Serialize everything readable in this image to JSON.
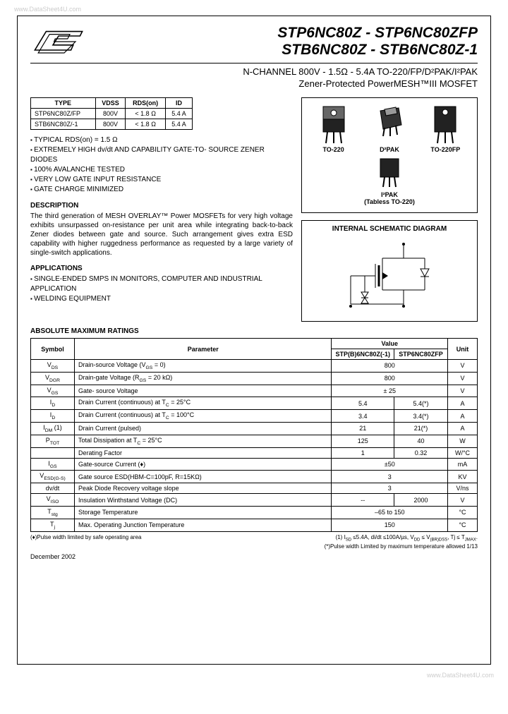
{
  "watermark_top": "www.DataSheet4U.com",
  "watermark_bottom": "www.DataSheet4U.com",
  "header": {
    "title_line1": "STP6NC80Z - STP6NC80ZFP",
    "title_line2": "STB6NC80Z - STB6NC80Z-1"
  },
  "subtitle": {
    "l1": "N-CHANNEL 800V - 1.5Ω - 5.4A TO-220/FP/D²PAK/I²PAK",
    "l2": "Zener-Protected PowerMESH™III MOSFET"
  },
  "spec_table": {
    "headers": [
      "TYPE",
      "VDSS",
      "RDS(on)",
      "ID"
    ],
    "rows": [
      [
        "STP6NC80Z/FP",
        "800V",
        "< 1.8 Ω",
        "5.4 A"
      ],
      [
        "STB6NC80Z/-1",
        "800V",
        "< 1.8 Ω",
        "5.4 A"
      ]
    ]
  },
  "features": [
    "TYPICAL RDS(on) = 1.5 Ω",
    "EXTREMELY HIGH dv/dt AND CAPABILITY GATE-TO- SOURCE ZENER DIODES",
    "100% AVALANCHE TESTED",
    "VERY LOW GATE INPUT RESISTANCE",
    "GATE CHARGE MINIMIZED"
  ],
  "description": {
    "head": "DESCRIPTION",
    "text": "The third generation of MESH OVERLAY™ Power MOSFETs for very high voltage exhibits unsurpassed on-resistance per unit area while integrating back-to-back Zener diodes between gate and source. Such arrangement gives extra ESD capability with higher ruggedness performance as requested by a large variety of single-switch applications."
  },
  "applications": {
    "head": "APPLICATIONS",
    "items": [
      "SINGLE-ENDED SMPS IN MONITORS, COMPUTER AND INDUSTRIAL APPLICATION",
      "WELDING EQUIPMENT"
    ]
  },
  "packages": {
    "p1": "TO-220",
    "p2": "D²PAK",
    "p3": "TO-220FP",
    "p4": "I²PAK",
    "p4sub": "(Tabless TO-220)"
  },
  "schematic_title": "INTERNAL SCHEMATIC DIAGRAM",
  "ratings": {
    "title": "ABSOLUTE MAXIMUM RATINGS",
    "headers": {
      "symbol": "Symbol",
      "param": "Parameter",
      "value": "Value",
      "unit": "Unit",
      "sub1": "STP(B)6NC80Z(-1)",
      "sub2": "STP6NC80ZFP"
    },
    "rows": [
      {
        "sym": "V<sub>DS</sub>",
        "param": "Drain-source Voltage (V<sub>GS</sub> = 0)",
        "v1": "800",
        "v2": "",
        "span": true,
        "unit": "V"
      },
      {
        "sym": "V<sub>DGR</sub>",
        "param": "Drain-gate Voltage (R<sub>GS</sub> = 20 kΩ)",
        "v1": "800",
        "v2": "",
        "span": true,
        "unit": "V"
      },
      {
        "sym": "V<sub>GS</sub>",
        "param": "Gate- source Voltage",
        "v1": "± 25",
        "v2": "",
        "span": true,
        "unit": "V"
      },
      {
        "sym": "I<sub>D</sub>",
        "param": "Drain Current (continuous) at T<sub>C</sub> = 25°C",
        "v1": "5.4",
        "v2": "5.4(*)",
        "span": false,
        "unit": "A"
      },
      {
        "sym": "I<sub>D</sub>",
        "param": "Drain Current (continuous) at T<sub>C</sub> = 100°C",
        "v1": "3.4",
        "v2": "3.4(*)",
        "span": false,
        "unit": "A"
      },
      {
        "sym": "I<sub>DM</sub> (1)",
        "param": "Drain Current (pulsed)",
        "v1": "21",
        "v2": "21(*)",
        "span": false,
        "unit": "A"
      },
      {
        "sym": "P<sub>TOT</sub>",
        "param": "Total Dissipation at T<sub>C</sub> = 25°C",
        "v1": "125",
        "v2": "40",
        "span": false,
        "unit": "W"
      },
      {
        "sym": "",
        "param": "Derating Factor",
        "v1": "1",
        "v2": "0.32",
        "span": false,
        "unit": "W/°C"
      },
      {
        "sym": "I<sub>GS</sub>",
        "param": "Gate-source Current (♦)",
        "v1": "±50",
        "v2": "",
        "span": true,
        "unit": "mA"
      },
      {
        "sym": "V<sub>ESD(G-S)</sub>",
        "param": "Gate source ESD(HBM-C=100pF, R=15KΩ)",
        "v1": "3",
        "v2": "",
        "span": true,
        "unit": "KV"
      },
      {
        "sym": "dv/dt",
        "param": "Peak Diode Recovery voltage slope",
        "v1": "3",
        "v2": "",
        "span": true,
        "unit": "V/ns"
      },
      {
        "sym": "V<sub>ISO</sub>",
        "param": "Insulation Winthstand Voltage (DC)",
        "v1": "--",
        "v2": "2000",
        "span": false,
        "unit": "V"
      },
      {
        "sym": "T<sub>stg</sub>",
        "param": "Storage Temperature",
        "v1": "–65 to 150",
        "v2": "",
        "span": true,
        "unit": "°C"
      },
      {
        "sym": "T<sub>j</sub>",
        "param": "Max. Operating Junction Temperature",
        "v1": "150",
        "v2": "",
        "span": true,
        "unit": "°C"
      }
    ]
  },
  "footnotes": {
    "left": "(♦)Pulse width limited by safe operating area",
    "r1": "(1) I<sub>SD</sub> ≤5.4A, di/dt ≤100A/µs, V<sub>DD</sub> ≤ V<sub>(BR)DSS</sub>, Tj ≤ T<sub>JMAX</sub>.",
    "r2": "(*)Pulse width Limited by maximum temperature allowed 1/13"
  },
  "footer": {
    "date": "December 2002"
  }
}
